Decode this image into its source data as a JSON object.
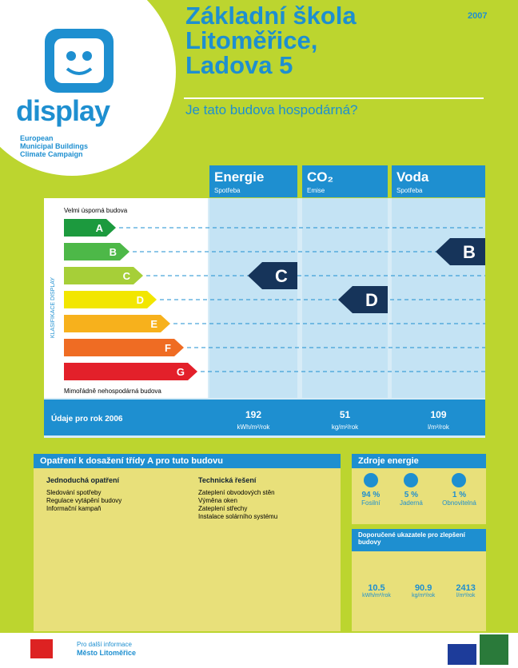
{
  "header": {
    "title_lines": [
      "Základní škola",
      "Litoměřice,",
      "Ladova 5"
    ],
    "year": "2007",
    "question": "Je tato budova hospodárná?"
  },
  "logo": {
    "name": "display",
    "tagline": [
      "European",
      "Municipal Buildings",
      "Climate Campaign"
    ]
  },
  "rating": {
    "top_label": "Velmi úsporná budova",
    "bottom_label": "Mimořádně nehospodárná budova",
    "axis_label": "KLASIFIKACE DISPLAY",
    "classes": [
      {
        "letter": "A",
        "color": "#1c9a3e"
      },
      {
        "letter": "B",
        "color": "#4db848"
      },
      {
        "letter": "C",
        "color": "#a6cf38"
      },
      {
        "letter": "D",
        "color": "#f2e600"
      },
      {
        "letter": "E",
        "color": "#f7b11c"
      },
      {
        "letter": "F",
        "color": "#ef6c23"
      },
      {
        "letter": "G",
        "color": "#e3202a"
      }
    ],
    "year_label": "Údaje pro rok 2006",
    "columns": [
      {
        "title": "Energie",
        "subtitle": "Spotřeba",
        "rating": "C",
        "value": "192",
        "unit": "kWh/m²/rok"
      },
      {
        "title": "CO₂",
        "subtitle": "Emise",
        "rating": "D",
        "value": "51",
        "unit": "kg/m²/rok"
      },
      {
        "title": "Voda",
        "subtitle": "Spotřeba",
        "rating": "B",
        "value": "109",
        "unit": "l/m²/rok"
      }
    ]
  },
  "measures": {
    "title": "Opatření k dosažení třídy A pro tuto budovu",
    "groups": [
      {
        "title": "Jednoduchá opatření",
        "items": [
          "Sledování spotřeby",
          "Regulace vytápění budovy",
          "Informační kampaň"
        ]
      },
      {
        "title": "Technická řešení",
        "items": [
          "Zateplení obvodových stěn",
          "Výměna oken",
          "Zateplení střechy",
          "Instalace solárního systému"
        ]
      }
    ]
  },
  "sources": {
    "title": "Zdroje energie",
    "items": [
      {
        "value": "94 %",
        "label": "Fosilní"
      },
      {
        "value": "5 %",
        "label": "Jaderná"
      },
      {
        "value": "1 %",
        "label": "Obnovitelná"
      }
    ]
  },
  "indicators": {
    "title": "Doporučené ukazatele pro zlepšení budovy",
    "items": [
      {
        "value": "10.5",
        "unit": "kWh/m²/rok"
      },
      {
        "value": "90.9",
        "unit": "kg/m²/rok"
      },
      {
        "value": "2413",
        "unit": "l/m²/rok"
      }
    ]
  },
  "footer": {
    "info": "Pro další informace",
    "city": "Město Litoměřice"
  }
}
